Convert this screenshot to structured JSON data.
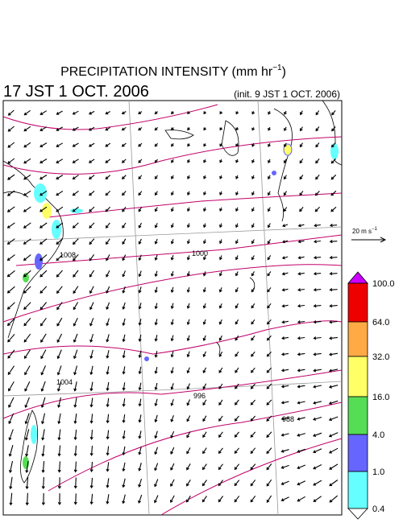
{
  "header": {
    "title_main": "PRECIPITATION INTENSITY (mm hr",
    "title_sup": "−1",
    "title_end": ")",
    "valid_time": "17 JST 1 OCT. 2006",
    "init_time": "(init. 9 JST 1 OCT. 2006)"
  },
  "wind_scale": {
    "label_main": "20 m s",
    "label_sup": "−1"
  },
  "colorbar": {
    "labels": [
      "100.0",
      "64.0",
      "32.0",
      "16.0",
      "4.0",
      "1.0",
      "0.4"
    ]
  },
  "isobar_labels": [
    "1008",
    "1000",
    "1004",
    "996",
    "988"
  ]
}
